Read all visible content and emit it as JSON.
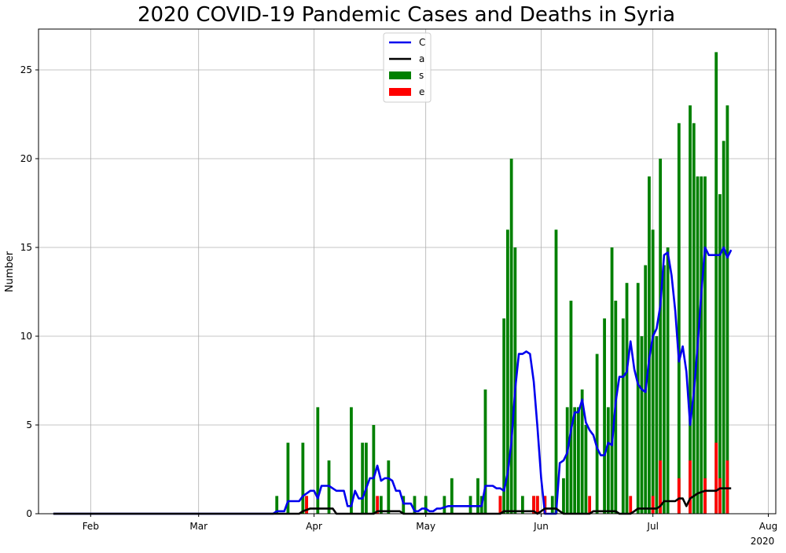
{
  "chart_data": {
    "type": "bar",
    "title": "2020 COVID-19 Pandemic Cases and Deaths in Syria",
    "xlabel": "",
    "ylabel": "Number",
    "year_label": "2020",
    "x_type": "date",
    "x_range": [
      "2020-01-18",
      "2020-08-03"
    ],
    "ylim": [
      0,
      27.3
    ],
    "grid": true,
    "legend_position": "top-center",
    "x_ticks": [
      {
        "date": "2020-02-01",
        "label": "Feb"
      },
      {
        "date": "2020-03-01",
        "label": "Mar"
      },
      {
        "date": "2020-04-01",
        "label": "Apr"
      },
      {
        "date": "2020-05-01",
        "label": "May"
      },
      {
        "date": "2020-06-01",
        "label": "Jun"
      },
      {
        "date": "2020-07-01",
        "label": "Jul"
      },
      {
        "date": "2020-08-01",
        "label": "Aug"
      }
    ],
    "y_ticks": [
      0,
      5,
      10,
      15,
      20,
      25
    ],
    "series": [
      {
        "name": "C",
        "kind": "line",
        "color": "#0000ee",
        "points": [
          [
            "2020-01-22",
            0
          ],
          [
            "2020-03-21",
            0
          ],
          [
            "2020-03-22",
            0.14
          ],
          [
            "2020-03-24",
            0.14
          ],
          [
            "2020-03-25",
            0.71
          ],
          [
            "2020-03-28",
            0.71
          ],
          [
            "2020-03-29",
            1.0
          ],
          [
            "2020-03-30",
            1.14
          ],
          [
            "2020-03-31",
            1.29
          ],
          [
            "2020-04-01",
            1.29
          ],
          [
            "2020-04-02",
            0.86
          ],
          [
            "2020-04-03",
            1.57
          ],
          [
            "2020-04-05",
            1.57
          ],
          [
            "2020-04-06",
            1.43
          ],
          [
            "2020-04-07",
            1.29
          ],
          [
            "2020-04-09",
            1.29
          ],
          [
            "2020-04-10",
            0.43
          ],
          [
            "2020-04-11",
            0.43
          ],
          [
            "2020-04-12",
            1.29
          ],
          [
            "2020-04-13",
            0.86
          ],
          [
            "2020-04-14",
            0.86
          ],
          [
            "2020-04-15",
            1.43
          ],
          [
            "2020-04-16",
            2.0
          ],
          [
            "2020-04-17",
            2.0
          ],
          [
            "2020-04-18",
            2.71
          ],
          [
            "2020-04-19",
            1.86
          ],
          [
            "2020-04-20",
            2.0
          ],
          [
            "2020-04-21",
            2.0
          ],
          [
            "2020-04-22",
            1.86
          ],
          [
            "2020-04-23",
            1.29
          ],
          [
            "2020-04-24",
            1.29
          ],
          [
            "2020-04-25",
            0.57
          ],
          [
            "2020-04-27",
            0.57
          ],
          [
            "2020-04-28",
            0.14
          ],
          [
            "2020-04-29",
            0.14
          ],
          [
            "2020-04-30",
            0.29
          ],
          [
            "2020-05-01",
            0.29
          ],
          [
            "2020-05-02",
            0.14
          ],
          [
            "2020-05-03",
            0.14
          ],
          [
            "2020-05-04",
            0.29
          ],
          [
            "2020-05-05",
            0.29
          ],
          [
            "2020-05-07",
            0.43
          ],
          [
            "2020-05-16",
            0.43
          ],
          [
            "2020-05-17",
            1.57
          ],
          [
            "2020-05-19",
            1.57
          ],
          [
            "2020-05-20",
            1.43
          ],
          [
            "2020-05-21",
            1.43
          ],
          [
            "2020-05-22",
            1.29
          ],
          [
            "2020-05-23",
            2.29
          ],
          [
            "2020-05-24",
            4.0
          ],
          [
            "2020-05-25",
            7.0
          ],
          [
            "2020-05-26",
            9.0
          ],
          [
            "2020-05-27",
            9.0
          ],
          [
            "2020-05-28",
            9.14
          ],
          [
            "2020-05-29",
            9.0
          ],
          [
            "2020-05-30",
            7.43
          ],
          [
            "2020-05-31",
            4.86
          ],
          [
            "2020-06-01",
            2.0
          ],
          [
            "2020-06-02",
            0
          ],
          [
            "2020-06-05",
            0
          ],
          [
            "2020-06-06",
            2.86
          ],
          [
            "2020-06-07",
            3.0
          ],
          [
            "2020-06-08",
            3.43
          ],
          [
            "2020-06-09",
            4.71
          ],
          [
            "2020-06-10",
            5.71
          ],
          [
            "2020-06-11",
            5.71
          ],
          [
            "2020-06-12",
            6.43
          ],
          [
            "2020-06-13",
            5.14
          ],
          [
            "2020-06-14",
            4.71
          ],
          [
            "2020-06-15",
            4.43
          ],
          [
            "2020-06-16",
            3.71
          ],
          [
            "2020-06-17",
            3.29
          ],
          [
            "2020-06-18",
            3.29
          ],
          [
            "2020-06-19",
            4.0
          ],
          [
            "2020-06-20",
            3.86
          ],
          [
            "2020-06-21",
            6.29
          ],
          [
            "2020-06-22",
            7.71
          ],
          [
            "2020-06-23",
            7.71
          ],
          [
            "2020-06-24",
            8.0
          ],
          [
            "2020-06-25",
            9.71
          ],
          [
            "2020-06-26",
            8.14
          ],
          [
            "2020-06-27",
            7.29
          ],
          [
            "2020-06-28",
            7.0
          ],
          [
            "2020-06-29",
            6.86
          ],
          [
            "2020-06-30",
            8.71
          ],
          [
            "2020-07-01",
            10.0
          ],
          [
            "2020-07-02",
            10.43
          ],
          [
            "2020-07-03",
            11.71
          ],
          [
            "2020-07-04",
            14.57
          ],
          [
            "2020-07-05",
            14.71
          ],
          [
            "2020-07-06",
            13.43
          ],
          [
            "2020-07-07",
            11.43
          ],
          [
            "2020-07-08",
            8.57
          ],
          [
            "2020-07-09",
            9.43
          ],
          [
            "2020-07-10",
            8.0
          ],
          [
            "2020-07-11",
            5.0
          ],
          [
            "2020-07-12",
            6.86
          ],
          [
            "2020-07-13",
            9.43
          ],
          [
            "2020-07-14",
            12.43
          ],
          [
            "2020-07-15",
            15.0
          ],
          [
            "2020-07-16",
            14.57
          ],
          [
            "2020-07-19",
            14.57
          ],
          [
            "2020-07-20",
            15.0
          ],
          [
            "2020-07-21",
            14.43
          ],
          [
            "2020-07-22",
            14.86
          ]
        ]
      },
      {
        "name": "a",
        "kind": "line",
        "color": "#000000",
        "points": [
          [
            "2020-01-22",
            0
          ],
          [
            "2020-03-28",
            0
          ],
          [
            "2020-03-29",
            0.14
          ],
          [
            "2020-03-31",
            0.29
          ],
          [
            "2020-04-06",
            0.29
          ],
          [
            "2020-04-07",
            0
          ],
          [
            "2020-04-17",
            0
          ],
          [
            "2020-04-18",
            0.14
          ],
          [
            "2020-04-24",
            0.14
          ],
          [
            "2020-04-25",
            0
          ],
          [
            "2020-05-21",
            0
          ],
          [
            "2020-05-22",
            0.14
          ],
          [
            "2020-05-30",
            0.14
          ],
          [
            "2020-05-31",
            0
          ],
          [
            "2020-06-01",
            0.14
          ],
          [
            "2020-06-02",
            0.29
          ],
          [
            "2020-06-05",
            0.29
          ],
          [
            "2020-06-06",
            0.14
          ],
          [
            "2020-06-07",
            0
          ],
          [
            "2020-06-14",
            0
          ],
          [
            "2020-06-15",
            0.14
          ],
          [
            "2020-06-21",
            0.14
          ],
          [
            "2020-06-22",
            0
          ],
          [
            "2020-06-25",
            0
          ],
          [
            "2020-06-26",
            0.14
          ],
          [
            "2020-06-27",
            0.29
          ],
          [
            "2020-07-02",
            0.29
          ],
          [
            "2020-07-03",
            0.43
          ],
          [
            "2020-07-04",
            0.71
          ],
          [
            "2020-07-07",
            0.71
          ],
          [
            "2020-07-08",
            0.86
          ],
          [
            "2020-07-09",
            0.86
          ],
          [
            "2020-07-10",
            0.43
          ],
          [
            "2020-07-11",
            0.86
          ],
          [
            "2020-07-12",
            1.0
          ],
          [
            "2020-07-13",
            1.14
          ],
          [
            "2020-07-15",
            1.29
          ],
          [
            "2020-07-18",
            1.29
          ],
          [
            "2020-07-19",
            1.43
          ],
          [
            "2020-07-22",
            1.43
          ]
        ]
      },
      {
        "name": "s",
        "kind": "bar",
        "color": "#008000",
        "points": [
          [
            "2020-03-22",
            1
          ],
          [
            "2020-03-25",
            4
          ],
          [
            "2020-03-29",
            4
          ],
          [
            "2020-03-30",
            1
          ],
          [
            "2020-04-02",
            6
          ],
          [
            "2020-04-05",
            3
          ],
          [
            "2020-04-11",
            6
          ],
          [
            "2020-04-14",
            4
          ],
          [
            "2020-04-15",
            4
          ],
          [
            "2020-04-17",
            5
          ],
          [
            "2020-04-19",
            1
          ],
          [
            "2020-04-21",
            3
          ],
          [
            "2020-04-25",
            1
          ],
          [
            "2020-04-28",
            1
          ],
          [
            "2020-05-01",
            1
          ],
          [
            "2020-05-06",
            1
          ],
          [
            "2020-05-08",
            2
          ],
          [
            "2020-05-13",
            1
          ],
          [
            "2020-05-15",
            2
          ],
          [
            "2020-05-16",
            1
          ],
          [
            "2020-05-17",
            7
          ],
          [
            "2020-05-21",
            1
          ],
          [
            "2020-05-22",
            11
          ],
          [
            "2020-05-23",
            16
          ],
          [
            "2020-05-24",
            20
          ],
          [
            "2020-05-25",
            15
          ],
          [
            "2020-05-27",
            1
          ],
          [
            "2020-05-30",
            1
          ],
          [
            "2020-05-31",
            1
          ],
          [
            "2020-06-02",
            1
          ],
          [
            "2020-06-04",
            1
          ],
          [
            "2020-06-05",
            16
          ],
          [
            "2020-06-07",
            2
          ],
          [
            "2020-06-08",
            6
          ],
          [
            "2020-06-09",
            12
          ],
          [
            "2020-06-10",
            6
          ],
          [
            "2020-06-11",
            6
          ],
          [
            "2020-06-12",
            7
          ],
          [
            "2020-06-13",
            5
          ],
          [
            "2020-06-16",
            9
          ],
          [
            "2020-06-18",
            11
          ],
          [
            "2020-06-19",
            6
          ],
          [
            "2020-06-20",
            15
          ],
          [
            "2020-06-21",
            12
          ],
          [
            "2020-06-23",
            11
          ],
          [
            "2020-06-24",
            13
          ],
          [
            "2020-06-27",
            13
          ],
          [
            "2020-06-28",
            10
          ],
          [
            "2020-06-29",
            14
          ],
          [
            "2020-06-30",
            19
          ],
          [
            "2020-07-01",
            16
          ],
          [
            "2020-07-02",
            10
          ],
          [
            "2020-07-03",
            20
          ],
          [
            "2020-07-04",
            14
          ],
          [
            "2020-07-05",
            15
          ],
          [
            "2020-07-08",
            22
          ],
          [
            "2020-07-11",
            23
          ],
          [
            "2020-07-12",
            22
          ],
          [
            "2020-07-13",
            19
          ],
          [
            "2020-07-14",
            19
          ],
          [
            "2020-07-15",
            19
          ],
          [
            "2020-07-18",
            26
          ],
          [
            "2020-07-19",
            18
          ],
          [
            "2020-07-20",
            21
          ],
          [
            "2020-07-21",
            23
          ]
        ]
      },
      {
        "name": "e",
        "kind": "bar",
        "color": "#ff0000",
        "points": [
          [
            "2020-03-30",
            1
          ],
          [
            "2020-04-18",
            1
          ],
          [
            "2020-05-21",
            1
          ],
          [
            "2020-05-30",
            1
          ],
          [
            "2020-05-31",
            1
          ],
          [
            "2020-06-02",
            1
          ],
          [
            "2020-06-14",
            1
          ],
          [
            "2020-06-25",
            1
          ],
          [
            "2020-07-01",
            1
          ],
          [
            "2020-07-03",
            3
          ],
          [
            "2020-07-08",
            2
          ],
          [
            "2020-07-11",
            3
          ],
          [
            "2020-07-15",
            2
          ],
          [
            "2020-07-18",
            4
          ],
          [
            "2020-07-19",
            2
          ],
          [
            "2020-07-21",
            3
          ]
        ]
      }
    ]
  }
}
